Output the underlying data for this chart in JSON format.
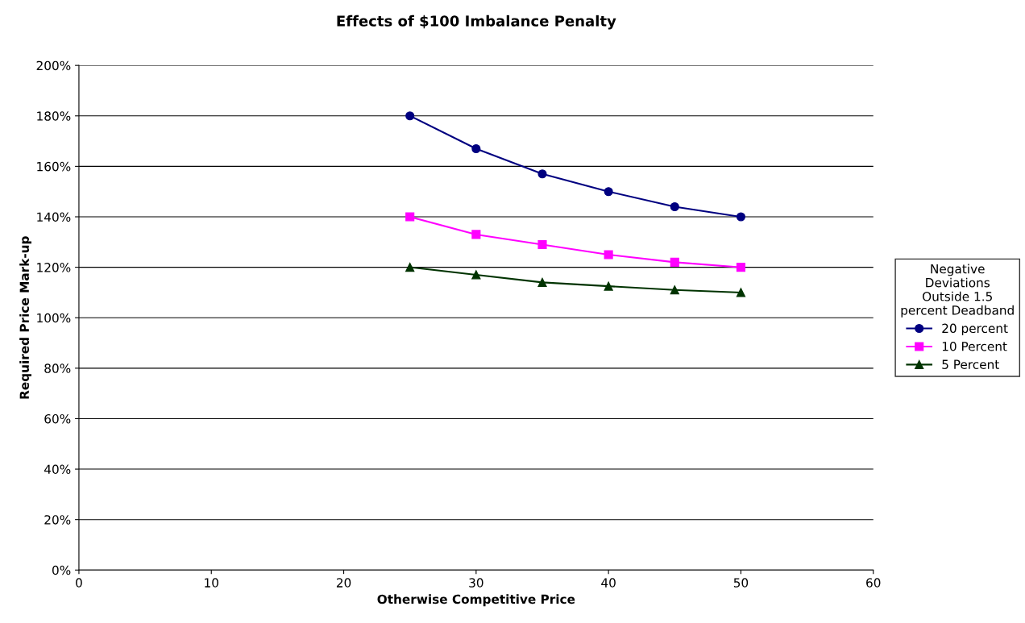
{
  "chart_data": {
    "type": "line",
    "title": "Effects of $100 Imbalance Penalty",
    "xlabel": "Otherwise Competitive Price",
    "ylabel": "Required Price Mark-up",
    "legend_title": "Negative\nDeviations\nOutside 1.5\npercent Deadband",
    "x": [
      25,
      30,
      35,
      40,
      45,
      50
    ],
    "series": [
      {
        "name": "20 percent",
        "color": "#000080",
        "marker": "circle",
        "values": [
          180,
          167,
          157,
          150,
          144,
          140
        ]
      },
      {
        "name": "10 Percent",
        "color": "#ff00ff",
        "marker": "square",
        "values": [
          140,
          133,
          129,
          125,
          122,
          120
        ]
      },
      {
        "name": "5 Percent",
        "color": "#003300",
        "marker": "triangle",
        "values": [
          120,
          117,
          114,
          112.5,
          111,
          110
        ]
      }
    ],
    "xlim": [
      0,
      60
    ],
    "xticks": [
      0,
      10,
      20,
      30,
      40,
      50,
      60
    ],
    "ylim": [
      0,
      200
    ],
    "yticks": [
      {
        "value": 0,
        "label": "0%"
      },
      {
        "value": 20,
        "label": "20%"
      },
      {
        "value": 40,
        "label": "40%"
      },
      {
        "value": 60,
        "label": "60%"
      },
      {
        "value": 80,
        "label": "80%"
      },
      {
        "value": 100,
        "label": "100%"
      },
      {
        "value": 120,
        "label": "120%"
      },
      {
        "value": 140,
        "label": "140%"
      },
      {
        "value": 160,
        "label": "160%"
      },
      {
        "value": 180,
        "label": "180%"
      },
      {
        "value": 200,
        "label": "200%"
      }
    ],
    "grid": "y",
    "legend": "right",
    "line_style": "solid"
  }
}
